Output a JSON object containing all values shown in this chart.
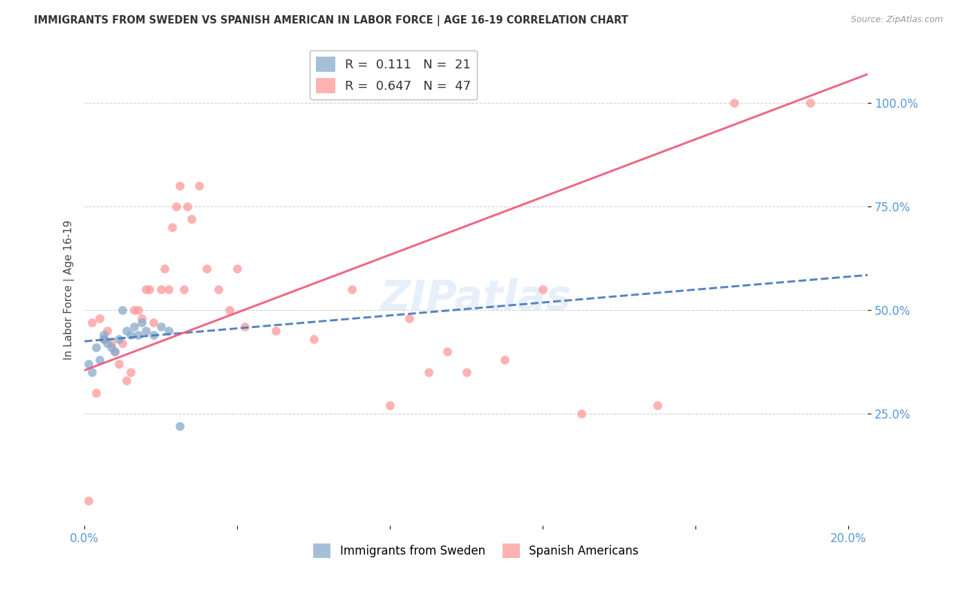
{
  "title": "IMMIGRANTS FROM SWEDEN VS SPANISH AMERICAN IN LABOR FORCE | AGE 16-19 CORRELATION CHART",
  "source": "Source: ZipAtlas.com",
  "ylabel": "In Labor Force | Age 16-19",
  "xlim": [
    0.0,
    0.205
  ],
  "ylim": [
    -0.02,
    1.12
  ],
  "ytick_positions": [
    0.25,
    0.5,
    0.75,
    1.0
  ],
  "ytick_labels": [
    "25.0%",
    "50.0%",
    "75.0%",
    "100.0%"
  ],
  "xtick_positions": [
    0.0,
    0.04,
    0.08,
    0.12,
    0.16,
    0.2
  ],
  "xtick_labels": [
    "0.0%",
    "",
    "",
    "",
    "",
    "20.0%"
  ],
  "sweden_r": 0.111,
  "sweden_n": 21,
  "spanish_r": 0.647,
  "spanish_n": 47,
  "sweden_color": "#89AACC",
  "spanish_color": "#FF9999",
  "sweden_line_color": "#4477BB",
  "spanish_line_color": "#EE5577",
  "tick_color": "#5599DD",
  "watermark": "ZIPatlas",
  "sweden_x": [
    0.001,
    0.002,
    0.003,
    0.004,
    0.005,
    0.005,
    0.006,
    0.007,
    0.008,
    0.009,
    0.01,
    0.011,
    0.012,
    0.013,
    0.014,
    0.015,
    0.016,
    0.018,
    0.02,
    0.022,
    0.025
  ],
  "sweden_y": [
    0.37,
    0.35,
    0.41,
    0.38,
    0.44,
    0.43,
    0.42,
    0.41,
    0.4,
    0.43,
    0.5,
    0.45,
    0.44,
    0.46,
    0.44,
    0.47,
    0.45,
    0.44,
    0.46,
    0.45,
    0.22
  ],
  "spanish_x": [
    0.001,
    0.002,
    0.003,
    0.004,
    0.005,
    0.006,
    0.007,
    0.008,
    0.009,
    0.01,
    0.011,
    0.012,
    0.013,
    0.014,
    0.015,
    0.016,
    0.017,
    0.018,
    0.02,
    0.021,
    0.022,
    0.023,
    0.024,
    0.025,
    0.026,
    0.027,
    0.028,
    0.03,
    0.032,
    0.035,
    0.038,
    0.04,
    0.042,
    0.05,
    0.06,
    0.07,
    0.08,
    0.085,
    0.09,
    0.095,
    0.1,
    0.11,
    0.12,
    0.13,
    0.15,
    0.17,
    0.19
  ],
  "spanish_y": [
    0.04,
    0.47,
    0.3,
    0.48,
    0.43,
    0.45,
    0.42,
    0.4,
    0.37,
    0.42,
    0.33,
    0.35,
    0.5,
    0.5,
    0.48,
    0.55,
    0.55,
    0.47,
    0.55,
    0.6,
    0.55,
    0.7,
    0.75,
    0.8,
    0.55,
    0.75,
    0.72,
    0.8,
    0.6,
    0.55,
    0.5,
    0.6,
    0.46,
    0.45,
    0.43,
    0.55,
    0.27,
    0.48,
    0.35,
    0.4,
    0.35,
    0.38,
    0.55,
    0.25,
    0.27,
    1.0,
    1.0
  ]
}
